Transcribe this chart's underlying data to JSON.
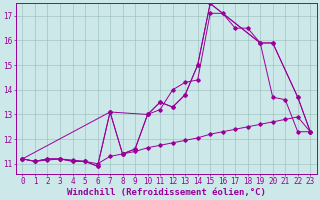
{
  "title": "",
  "xlabel": "Windchill (Refroidissement éolien,°C)",
  "bg_color": "#cce8e8",
  "line_color": "#990099",
  "grid_color": "#99bbbb",
  "xlim": [
    -0.5,
    23.5
  ],
  "ylim": [
    10.6,
    17.5
  ],
  "yticks": [
    11,
    12,
    13,
    14,
    15,
    16,
    17
  ],
  "xticks": [
    0,
    1,
    2,
    3,
    4,
    5,
    6,
    7,
    8,
    9,
    10,
    11,
    12,
    13,
    14,
    15,
    16,
    17,
    18,
    19,
    20,
    21,
    22,
    23
  ],
  "series1_x": [
    0,
    1,
    2,
    3,
    4,
    5,
    6,
    7,
    8,
    9,
    10,
    11,
    12,
    13,
    14,
    15,
    16,
    17,
    18,
    19,
    20,
    21,
    22,
    23
  ],
  "series1_y": [
    11.2,
    11.1,
    11.2,
    11.2,
    11.1,
    11.1,
    10.9,
    13.1,
    11.4,
    11.6,
    13.0,
    13.2,
    14.0,
    14.3,
    14.4,
    17.1,
    17.1,
    16.5,
    16.5,
    15.9,
    13.7,
    13.6,
    12.3,
    12.3
  ],
  "series2_x": [
    0,
    1,
    2,
    3,
    4,
    5,
    6,
    7,
    8,
    9,
    10,
    11,
    12,
    13,
    14,
    15,
    19,
    20,
    22,
    23
  ],
  "series2_y": [
    11.2,
    11.1,
    11.2,
    11.2,
    11.1,
    11.1,
    10.9,
    13.1,
    11.4,
    11.6,
    13.0,
    13.5,
    13.3,
    13.8,
    15.0,
    17.5,
    15.9,
    15.9,
    13.7,
    12.3
  ],
  "series3_x": [
    0,
    7,
    10,
    11,
    12,
    13,
    14,
    15,
    19,
    20,
    22,
    23
  ],
  "series3_y": [
    11.2,
    13.1,
    13.0,
    13.5,
    13.3,
    13.8,
    15.0,
    17.5,
    15.9,
    15.9,
    13.7,
    12.3
  ],
  "series4_x": [
    0,
    1,
    2,
    3,
    4,
    5,
    6,
    7,
    8,
    9,
    10,
    11,
    12,
    13,
    14,
    15,
    16,
    17,
    18,
    19,
    20,
    21,
    22,
    23
  ],
  "series4_y": [
    11.2,
    11.1,
    11.15,
    11.2,
    11.15,
    11.1,
    11.0,
    11.3,
    11.4,
    11.5,
    11.65,
    11.75,
    11.85,
    11.95,
    12.05,
    12.2,
    12.3,
    12.4,
    12.5,
    12.6,
    12.7,
    12.8,
    12.9,
    12.3
  ],
  "font_color": "#990099",
  "font_name": "monospace",
  "tick_fontsize": 5.5,
  "xlabel_fontsize": 6.5
}
